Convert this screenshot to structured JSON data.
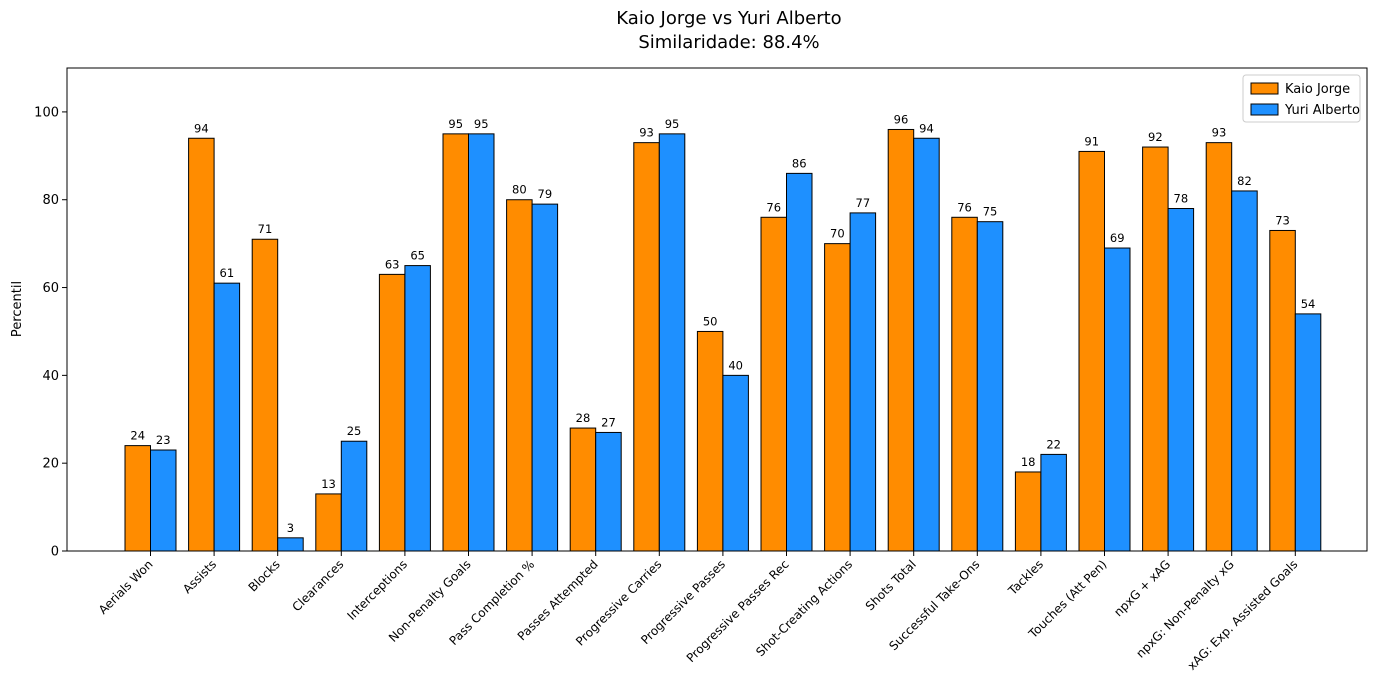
{
  "chart_data": {
    "type": "bar",
    "title": "Kaio Jorge vs Yuri Alberto",
    "subtitle": "Similaridade: 88.4%",
    "xlabel": "",
    "ylabel": "Percentil",
    "ylim": [
      0,
      110
    ],
    "yticks": [
      0,
      20,
      40,
      60,
      80,
      100
    ],
    "grid": false,
    "legend_position": "top-right",
    "categories": [
      "Aerials Won",
      "Assists",
      "Blocks",
      "Clearances",
      "Interceptions",
      "Non-Penalty Goals",
      "Pass Completion %",
      "Passes Attempted",
      "Progressive Carries",
      "Progressive Passes",
      "Progressive Passes Rec",
      "Shot-Creating Actions",
      "Shots Total",
      "Successful Take-Ons",
      "Tackles",
      "Touches (Att Pen)",
      "npxG + xAG",
      "npxG: Non-Penalty xG",
      "xAG: Exp. Assisted Goals"
    ],
    "series": [
      {
        "name": "Kaio Jorge",
        "color": "#ff8c00",
        "values": [
          24,
          94,
          71,
          13,
          63,
          95,
          80,
          28,
          93,
          50,
          76,
          70,
          96,
          76,
          18,
          91,
          92,
          93,
          73
        ]
      },
      {
        "name": "Yuri Alberto",
        "color": "#1e90ff",
        "values": [
          23,
          61,
          3,
          25,
          65,
          95,
          79,
          27,
          95,
          40,
          86,
          77,
          94,
          75,
          22,
          69,
          78,
          82,
          54
        ]
      }
    ]
  }
}
